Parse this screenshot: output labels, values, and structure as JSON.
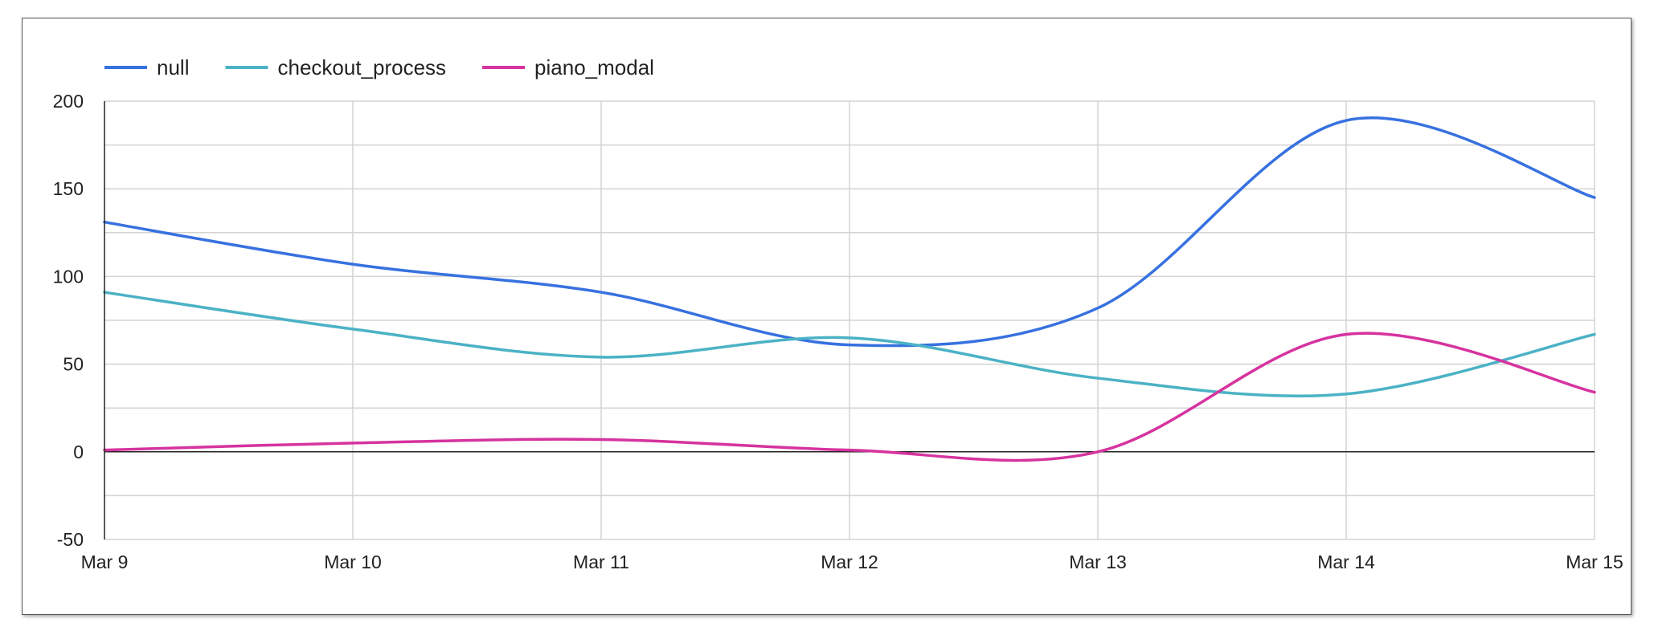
{
  "chart_data": {
    "type": "line",
    "x": [
      "Mar 9",
      "Mar 10",
      "Mar 11",
      "Mar 12",
      "Mar 13",
      "Mar 14",
      "Mar 15"
    ],
    "yticks": [
      200,
      150,
      100,
      50,
      0,
      -50
    ],
    "ylim": [
      -50,
      200
    ],
    "grid": true,
    "legend_position": "top-left",
    "series": [
      {
        "name": "null",
        "color": "#3771e0",
        "values": [
          131,
          107,
          91,
          61,
          82,
          189,
          145
        ]
      },
      {
        "name": "checkout_process",
        "color": "#4bb2c5",
        "values": [
          91,
          70,
          54,
          65,
          42,
          33,
          67
        ]
      },
      {
        "name": "piano_modal",
        "color": "#d6339f",
        "values": [
          1,
          5,
          7,
          1,
          0,
          67,
          34
        ]
      }
    ]
  }
}
